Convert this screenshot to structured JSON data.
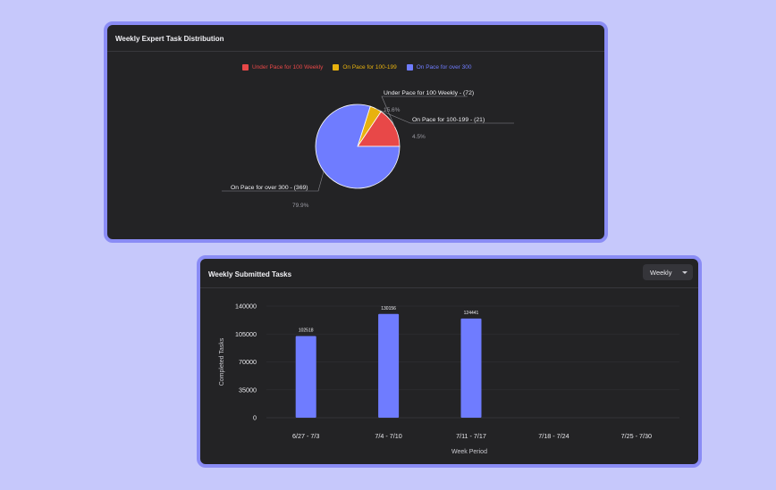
{
  "pie_card": {
    "title": "Weekly Expert Task Distribution"
  },
  "bar_card": {
    "title": "Weekly Submitted Tasks",
    "dropdown_value": "Weekly"
  },
  "chart_data": [
    {
      "type": "pie",
      "title": "",
      "slices": [
        {
          "name": "Under Pace for 100 Weekly",
          "value": 72,
          "percent_label": "15.6%",
          "label": "Under Pace for 100 Weekly - (72)",
          "color": "#e84848"
        },
        {
          "name": "On Pace for 100-199",
          "value": 21,
          "percent_label": "4.5%",
          "label": "On Pace for 100-199 - (21)",
          "color": "#e8b20e"
        },
        {
          "name": "On Pace for over 300",
          "value": 369,
          "percent_label": "79.9%",
          "label": "On Pace for over 300 - (369)",
          "color": "#6f7cff"
        }
      ],
      "legend_position": "top"
    },
    {
      "type": "bar",
      "categories": [
        "6/27 - 7/3",
        "7/4 - 7/10",
        "7/11 - 7/17",
        "7/18 - 7/24",
        "7/25 - 7/30"
      ],
      "values": [
        102518,
        130156,
        124441,
        null,
        null
      ],
      "data_labels": [
        "102518",
        "130156",
        "124441",
        "",
        ""
      ],
      "xlabel": "Week Period",
      "ylabel": "Completed Tasks",
      "ylim": [
        0,
        140000
      ],
      "yticks": [
        0,
        35000,
        70000,
        105000,
        140000
      ],
      "ytick_labels": [
        "0",
        "35000",
        "70000",
        "105000",
        "140000"
      ],
      "bar_color": "#6f7cff",
      "grid": true
    }
  ]
}
